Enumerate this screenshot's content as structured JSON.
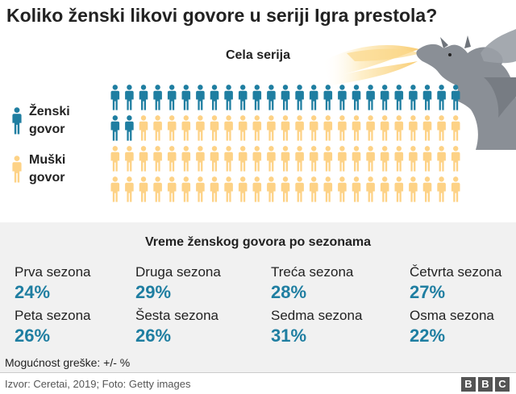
{
  "header": {
    "title": "Koliko ženski likovi govore u seriji Igra prestola?",
    "subtitle": "Cela serija"
  },
  "legend": {
    "female_line1": "Ženski",
    "female_line2": "govor",
    "male_line1": "Muški",
    "male_line2": "govor"
  },
  "colors": {
    "female": "#1f7ea1",
    "male": "#fdd286",
    "value_text": "#1f7ea1",
    "panel_bg": "#f1f1f1"
  },
  "chart_data": [
    {
      "type": "pictogram",
      "title": "Cela serija",
      "rows": 4,
      "columns": 25,
      "total_icons": 100,
      "series": [
        {
          "name": "Ženski govor",
          "values": [
            27
          ]
        },
        {
          "name": "Muški govor",
          "values": [
            73
          ]
        }
      ]
    },
    {
      "type": "table",
      "title": "Vreme ženskog govora po sezonama",
      "categories": [
        "Prva sezona",
        "Druga sezona",
        "Treća sezona",
        "Četvrta sezona",
        "Peta sezona",
        "Šesta sezona",
        "Sedma sezona",
        "Osma sezona"
      ],
      "values": [
        24,
        29,
        28,
        27,
        26,
        26,
        31,
        22
      ],
      "labels": [
        "24%",
        "29%",
        "28%",
        "27%",
        "26%",
        "26%",
        "31%",
        "22%"
      ]
    }
  ],
  "panel": {
    "title": "Vreme ženskog govora po sezonama",
    "error_note": "Mogućnost greške: +/- %"
  },
  "footer": {
    "source": "Izvor: Ceretai, 2019; Foto: Getty images",
    "logo_letters": [
      "B",
      "B",
      "C"
    ]
  }
}
